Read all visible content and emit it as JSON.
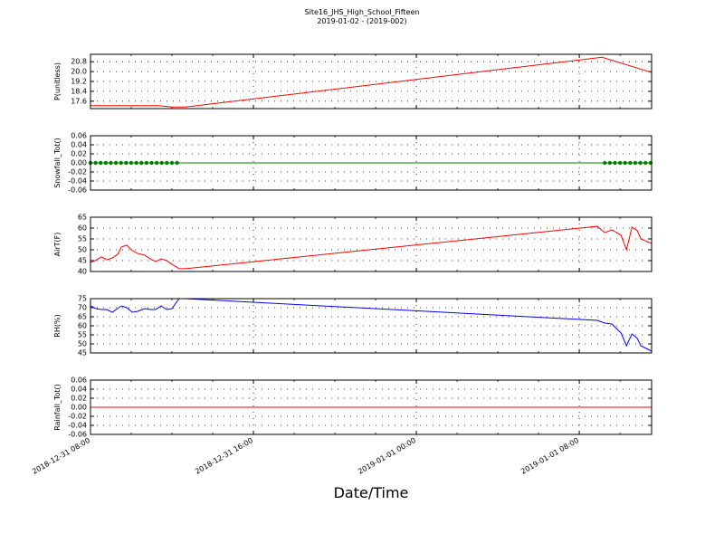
{
  "page": {
    "title": "Site16_JHS_High_School_Fifteen",
    "subtitle": "2019-01-02 - (2019-002)",
    "xlabel": "Date/Time"
  },
  "chart_data": [
    {
      "type": "line",
      "ylabel": "P(unitless)",
      "ylim": [
        17.0,
        21.4
      ],
      "yticks": [
        17.6,
        18.4,
        19.2,
        {
          "value": 20.0,
          "label": "20.0"
        },
        20.8
      ],
      "xlim": [
        "2018-12-31 08:00",
        "2019-01-01 11:33"
      ],
      "xticks": [
        "2018-12-31 08:00",
        "2018-12-31 16:00",
        "2019-01-01 00:00",
        "2019-01-01 08:00"
      ],
      "grid": true,
      "x": [
        "2018-12-31 08:00",
        "2018-12-31 11:20",
        "2018-12-31 12:00",
        "2018-12-31 12:40",
        "2019-01-01 09:07",
        "2019-01-01 11:33"
      ],
      "series": [
        {
          "name": "P",
          "color": "#ff0000",
          "values": [
            17.24,
            17.24,
            17.13,
            17.13,
            21.16,
            19.93
          ]
        }
      ]
    },
    {
      "type": "line",
      "ylabel": "Snowfall_Tot()",
      "ylim": [
        -0.06,
        0.06
      ],
      "yticks": [
        -0.06,
        -0.04,
        -0.02,
        {
          "value": 0,
          "label": "0.00"
        },
        0.02,
        0.04,
        0.06
      ],
      "xlim": [
        "2018-12-31 08:00",
        "2019-01-01 11:33"
      ],
      "xticks": [
        "2018-12-31 08:00",
        "2018-12-31 16:00",
        "2019-01-01 00:00",
        "2019-01-01 08:00"
      ],
      "grid": true,
      "x": [
        "2018-12-31 08:00",
        "2018-12-31 08:15",
        "2018-12-31 08:30",
        "2018-12-31 08:45",
        "2018-12-31 09:00",
        "2018-12-31 09:15",
        "2018-12-31 09:30",
        "2018-12-31 09:45",
        "2018-12-31 10:00",
        "2018-12-31 10:15",
        "2018-12-31 10:30",
        "2018-12-31 10:45",
        "2018-12-31 11:00",
        "2018-12-31 11:15",
        "2018-12-31 11:30",
        "2018-12-31 11:45",
        "2018-12-31 12:00",
        "2018-12-31 12:15",
        "2019-01-01 09:15",
        "2019-01-01 09:30",
        "2019-01-01 09:45",
        "2019-01-01 10:00",
        "2019-01-01 10:15",
        "2019-01-01 10:30",
        "2019-01-01 10:45",
        "2019-01-01 11:00",
        "2019-01-01 11:15",
        "2019-01-01 11:30"
      ],
      "series": [
        {
          "name": "Snowfall_Tot",
          "color": "#008000",
          "marker": "o",
          "values": [
            0,
            0,
            0,
            0,
            0,
            0,
            0,
            0,
            0,
            0,
            0,
            0,
            0,
            0,
            0,
            0,
            0,
            0,
            0,
            0,
            0,
            0,
            0,
            0,
            0,
            0,
            0,
            0
          ]
        }
      ]
    },
    {
      "type": "line",
      "ylabel": "AirT(F)",
      "ylim": [
        40,
        65
      ],
      "yticks": [
        40,
        45,
        50,
        55,
        60,
        65
      ],
      "xlim": [
        "2018-12-31 08:00",
        "2019-01-01 11:33"
      ],
      "xticks": [
        "2018-12-31 08:00",
        "2018-12-31 16:00",
        "2019-01-01 00:00",
        "2019-01-01 08:00"
      ],
      "grid": true,
      "x": [
        "2018-12-31 08:00",
        "2018-12-31 08:13",
        "2018-12-31 08:32",
        "2018-12-31 08:48",
        "2018-12-31 09:04",
        "2018-12-31 09:20",
        "2018-12-31 09:31",
        "2018-12-31 09:47",
        "2018-12-31 10:03",
        "2018-12-31 10:19",
        "2018-12-31 10:40",
        "2018-12-31 10:56",
        "2018-12-31 11:12",
        "2018-12-31 11:28",
        "2018-12-31 11:44",
        "2018-12-31 12:00",
        "2018-12-31 12:21",
        "2018-12-31 12:40",
        "2019-01-01 08:53",
        "2019-01-01 09:15",
        "2019-01-01 09:36",
        "2019-01-01 10:03",
        "2019-01-01 10:19",
        "2019-01-01 10:35",
        "2019-01-01 10:51",
        "2019-01-01 11:01",
        "2019-01-01 11:33"
      ],
      "series": [
        {
          "name": "AirT",
          "color": "#ff0000",
          "values": [
            44.2,
            45,
            46.7,
            45.4,
            46.2,
            47.9,
            51.3,
            52.1,
            49.6,
            48.3,
            47.5,
            45.8,
            44.6,
            45.8,
            45,
            43.3,
            41.3,
            41.3,
            60.8,
            57.9,
            59.2,
            56.7,
            50,
            60.4,
            58.8,
            55,
            52.9
          ]
        }
      ]
    },
    {
      "type": "line",
      "ylabel": "RH(%)",
      "ylim": [
        45,
        75
      ],
      "yticks": [
        45,
        50,
        55,
        60,
        65,
        70,
        75
      ],
      "xlim": [
        "2018-12-31 08:00",
        "2019-01-01 11:33"
      ],
      "xticks": [
        "2018-12-31 08:00",
        "2018-12-31 16:00",
        "2019-01-01 00:00",
        "2019-01-01 08:00"
      ],
      "grid": true,
      "x": [
        "2018-12-31 08:00",
        "2018-12-31 08:16",
        "2018-12-31 08:32",
        "2018-12-31 08:48",
        "2018-12-31 09:04",
        "2018-12-31 09:31",
        "2018-12-31 09:47",
        "2018-12-31 10:03",
        "2018-12-31 10:19",
        "2018-12-31 10:40",
        "2018-12-31 10:56",
        "2018-12-31 11:12",
        "2018-12-31 11:28",
        "2018-12-31 11:44",
        "2018-12-31 12:00",
        "2018-12-31 12:21",
        "2018-12-31 12:40",
        "2019-01-01 08:53",
        "2019-01-01 09:15",
        "2019-01-01 09:36",
        "2019-01-01 10:03",
        "2019-01-01 10:19",
        "2019-01-01 10:35",
        "2019-01-01 10:51",
        "2019-01-01 11:01",
        "2019-01-01 11:33"
      ],
      "series": [
        {
          "name": "RH",
          "color": "#0000ff",
          "values": [
            71,
            69.5,
            69,
            69,
            67.5,
            71,
            70,
            67.5,
            68,
            69.5,
            69,
            69,
            71,
            69,
            69.5,
            75,
            75,
            63,
            61.5,
            61,
            56,
            49,
            55.5,
            53,
            49,
            46
          ]
        }
      ]
    },
    {
      "type": "line",
      "ylabel": "Rainfall_Tot()",
      "ylim": [
        -0.06,
        0.06
      ],
      "yticks": [
        -0.06,
        -0.04,
        -0.02,
        {
          "value": 0,
          "label": "0.00"
        },
        0.02,
        0.04,
        0.06
      ],
      "xlim": [
        "2018-12-31 08:00",
        "2019-01-01 11:33"
      ],
      "xticks": [
        "2018-12-31 08:00",
        "2018-12-31 16:00",
        "2019-01-01 00:00",
        "2019-01-01 08:00"
      ],
      "grid": true,
      "x": [
        "2018-12-31 08:00",
        "2018-12-31 12:40",
        "2019-01-01 08:53",
        "2019-01-01 11:33"
      ],
      "series": [
        {
          "name": "Rainfall_Tot",
          "color": "#ff0000",
          "values": [
            0,
            0,
            0,
            0
          ]
        }
      ]
    }
  ]
}
